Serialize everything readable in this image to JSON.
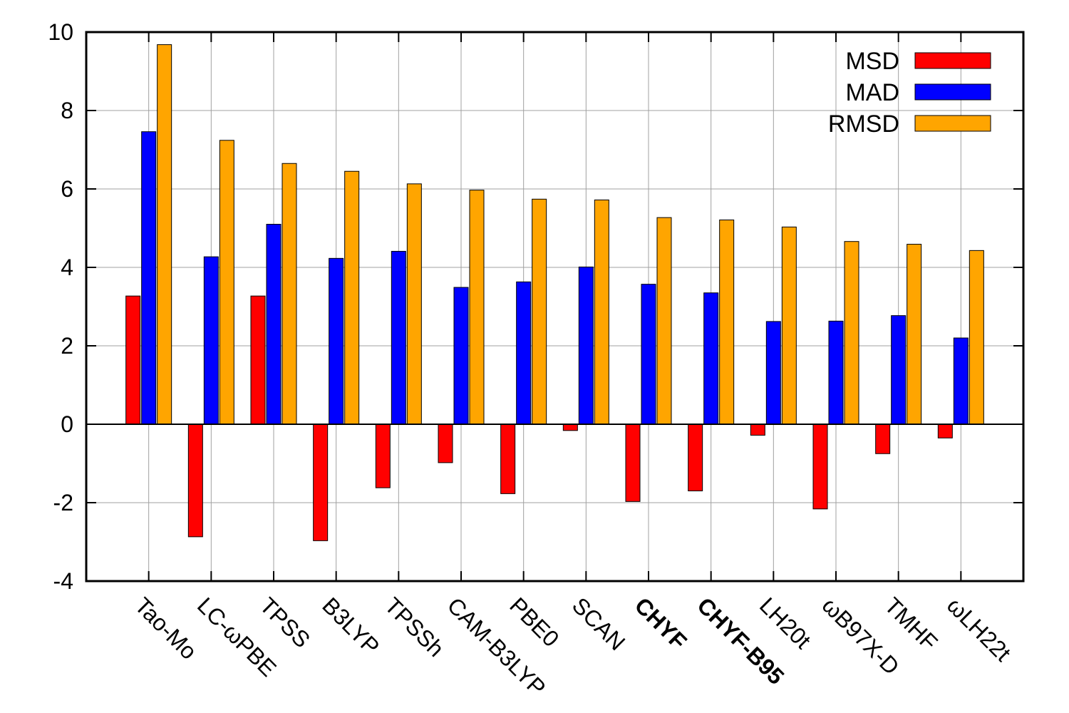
{
  "chart_data": {
    "type": "bar",
    "title": "",
    "xlabel": "",
    "ylabel": "",
    "ylim": [
      -4,
      10
    ],
    "yticks": [
      -4,
      -2,
      0,
      2,
      4,
      6,
      8,
      10
    ],
    "grid": true,
    "legend_position": "top-right",
    "categories": [
      "Tao-Mo",
      "LC-ωPBE",
      "TPSS",
      "B3LYP",
      "TPSSh",
      "CAM-B3LYP",
      "PBE0",
      "SCAN",
      "CHYF",
      "CHYF-B95",
      "LH20t",
      "ωB97X-D",
      "TMHF",
      "ωLH22t"
    ],
    "bold_categories": [
      "CHYF",
      "CHYF-B95"
    ],
    "series": [
      {
        "name": "MSD",
        "color": "#ff0000",
        "values": [
          3.27,
          -2.87,
          3.27,
          -2.97,
          -1.62,
          -0.98,
          -1.77,
          -0.16,
          -1.97,
          -1.7,
          -0.28,
          -2.16,
          -0.75,
          -0.35
        ]
      },
      {
        "name": "MAD",
        "color": "#0000ff",
        "values": [
          7.46,
          4.27,
          5.1,
          4.23,
          4.41,
          3.49,
          3.63,
          4.01,
          3.57,
          3.35,
          2.62,
          2.63,
          2.77,
          2.2
        ]
      },
      {
        "name": "RMSD",
        "color": "#ffa500",
        "values": [
          9.68,
          7.24,
          6.65,
          6.45,
          6.13,
          5.97,
          5.74,
          5.72,
          5.27,
          5.21,
          5.03,
          4.66,
          4.59,
          4.43
        ]
      }
    ]
  }
}
